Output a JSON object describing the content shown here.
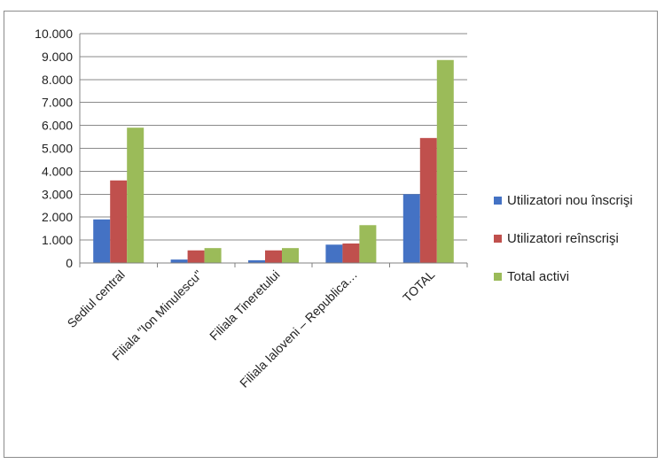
{
  "chart_data": {
    "type": "bar",
    "categories": [
      "Sediul central",
      "Filiala \"Ion Minulescu\"",
      "Filiala Tineretului",
      "Filiala Ialoveni – Republica…",
      "TOTAL"
    ],
    "series": [
      {
        "name": "Utilizatori nou înscrişi",
        "color": "#4472C4",
        "values": [
          1900,
          150,
          120,
          800,
          3000
        ]
      },
      {
        "name": "Utilizatori reînscrişi",
        "color": "#C0504D",
        "values": [
          3600,
          550,
          550,
          850,
          5450
        ]
      },
      {
        "name": "Total activi",
        "color": "#9BBB59",
        "values": [
          5900,
          650,
          650,
          1650,
          8850
        ]
      }
    ],
    "y_ticks": [
      "0",
      "1.000",
      "2.000",
      "3.000",
      "4.000",
      "5.000",
      "6.000",
      "7.000",
      "8.000",
      "9.000",
      "10.000"
    ],
    "ylim": [
      0,
      10000
    ],
    "grid": true,
    "legend_position": "right"
  }
}
